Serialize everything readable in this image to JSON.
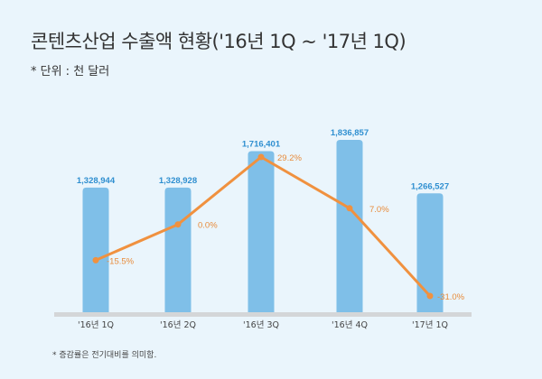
{
  "chart_data": {
    "type": "bar",
    "title": "콘텐츠산업 수출액 현황('16년 1Q ~ '17년 1Q)",
    "subtitle": "* 단위 : 천 달러",
    "note": "* 증감률은 전기대비를 의미함.",
    "categories": [
      "'16년 1Q",
      "'16년 2Q",
      "'16년 3Q",
      "'16년 4Q",
      "'17년 1Q"
    ],
    "series": [
      {
        "name": "수출액",
        "type": "bar",
        "values": [
          1328944,
          1328928,
          1716401,
          1836857,
          1266527
        ],
        "labels": [
          "1,328,944",
          "1,328,928",
          "1,716,401",
          "1,836,857",
          "1,266,527"
        ],
        "color": "#7fbfe8"
      },
      {
        "name": "증감률",
        "type": "line",
        "values": [
          -15.5,
          0.0,
          29.2,
          7.0,
          -31.0
        ],
        "labels": [
          "-15.5%",
          "0.0%",
          "29.2%",
          "7.0%",
          "-31.0%"
        ],
        "color": "#f0913f"
      }
    ],
    "ylim": [
      0,
      1836857
    ],
    "y2lim": [
      -40,
      40
    ],
    "grid": false
  }
}
